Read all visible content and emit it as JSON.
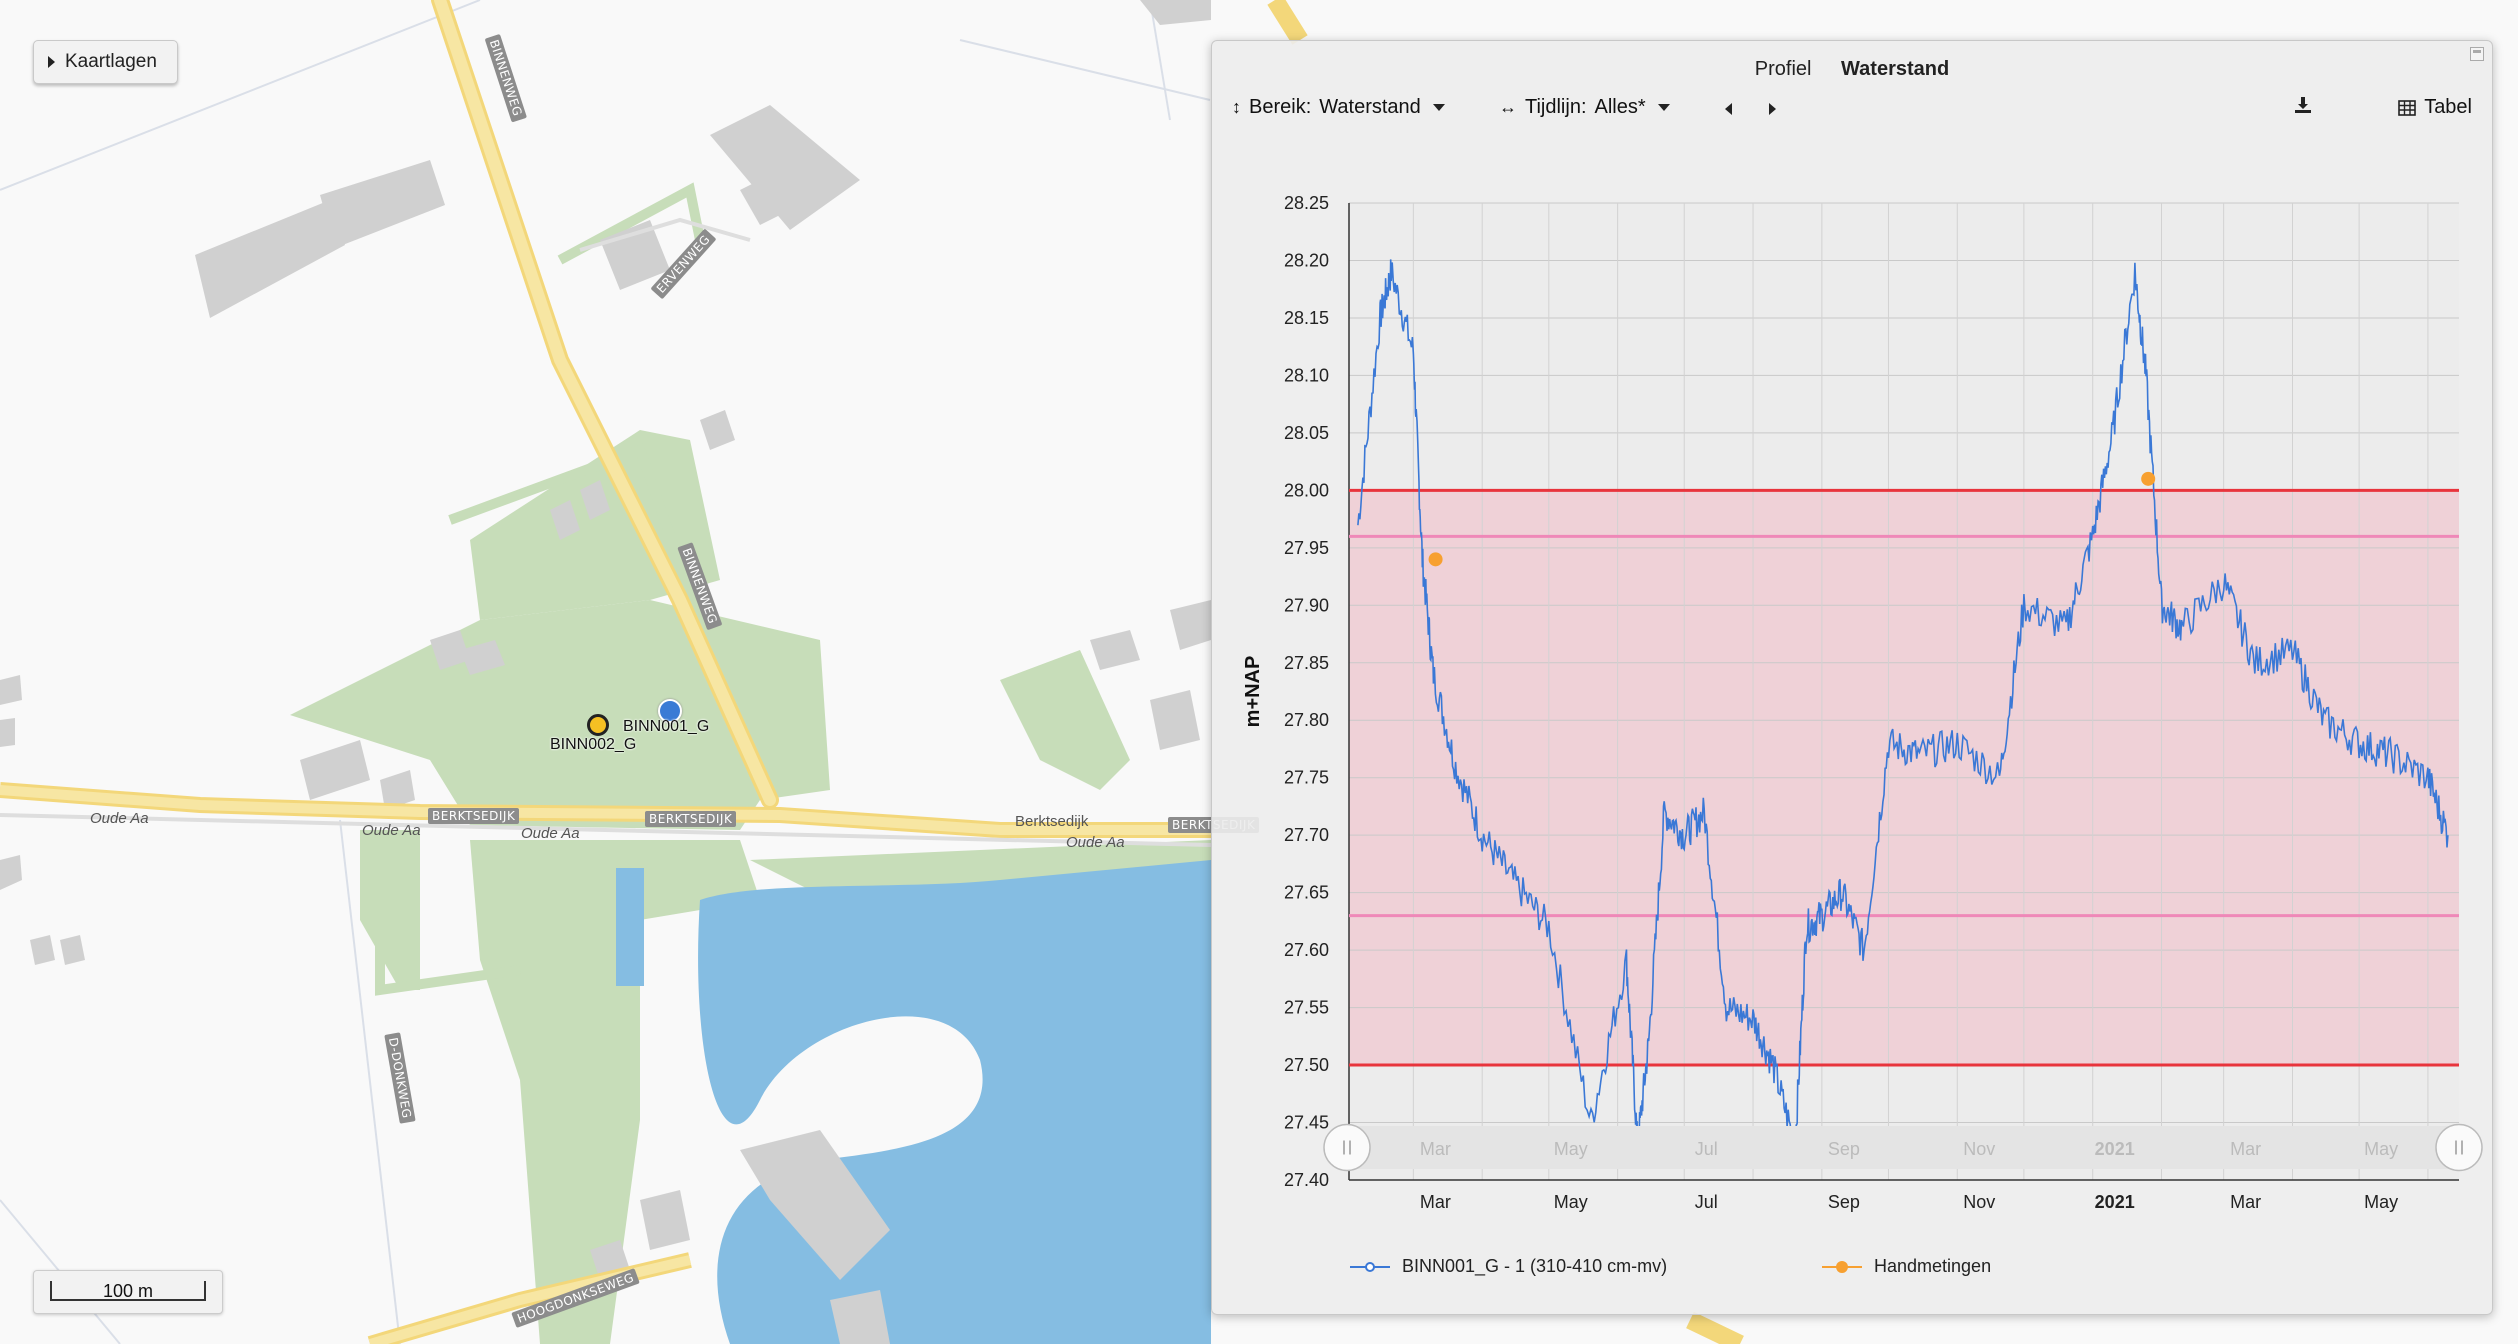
{
  "map": {
    "layers_button_label": "Kaartlagen",
    "scale_label": "100 m",
    "street_labels": [
      "BINNENWEG",
      "ERVENWEG",
      "BINNENWEG",
      "BERKTSEDIJK",
      "BERKTSEDIJK",
      "BERKTSEDIJK",
      "HOOGDONKSEWEG",
      "D-DONKWEG"
    ],
    "road_names": [
      "Oude Aa",
      "Oude Aa",
      "Oude Aa",
      "Oude Aa",
      "Berktsedijk"
    ],
    "markers": [
      {
        "label": "BINN001_G",
        "color": "#3a7bd5"
      },
      {
        "label": "BINN002_G",
        "color": "#f5c023"
      }
    ],
    "colors": {
      "water": "#84bce3",
      "green": "#c6dcb8",
      "building": "#cfcfcf",
      "road": "#f6e08e"
    }
  },
  "panel": {
    "tabs": [
      "Profiel",
      "Waterstand"
    ],
    "active_tab": "Waterstand",
    "bereik_label": "Bereik:",
    "bereik_value": "Waterstand",
    "tijdlijn_label": "Tijdlijn:",
    "tijdlijn_value": "Alles*",
    "table_label": "Tabel",
    "icons": [
      "vertical-arrows-icon",
      "horizontal-arrows-icon",
      "prev-icon",
      "next-icon",
      "download-icon",
      "table-icon"
    ]
  },
  "chart_data": {
    "type": "line",
    "ylabel": "m+NAP",
    "ylim": [
      27.4,
      28.25
    ],
    "yticks": [
      "28.25",
      "28.20",
      "28.15",
      "28.10",
      "28.05",
      "28.00",
      "27.95",
      "27.90",
      "27.85",
      "27.80",
      "27.75",
      "27.70",
      "27.65",
      "27.60",
      "27.55",
      "27.50",
      "27.45",
      "27.40"
    ],
    "x_ticks": [
      "Mar",
      "May",
      "Jul",
      "Sep",
      "Nov",
      "2021",
      "Mar",
      "May"
    ],
    "x_bold": "2021",
    "navigator_ticks": [
      "Mar",
      "May",
      "Jul",
      "Sep",
      "Nov",
      "2021",
      "Mar",
      "May"
    ],
    "reference_lines": [
      {
        "value": 28.0,
        "color": "#e8343c"
      },
      {
        "value": 27.5,
        "color": "#e8343c"
      },
      {
        "value": 27.96,
        "color": "#ef88b8"
      },
      {
        "value": 27.63,
        "color": "#ef88b8"
      }
    ],
    "band": {
      "from": 27.5,
      "to": 28.0,
      "color": "#f0c8d0"
    },
    "series": [
      {
        "name": "BINN001_G - 1 (310-410 cm-mv)",
        "color": "#3a78d6",
        "x": [
          "2020-02-05",
          "2020-02-15",
          "2020-02-20",
          "2020-03-01",
          "2020-03-05",
          "2020-03-10",
          "2020-03-20",
          "2020-04-01",
          "2020-04-15",
          "2020-05-01",
          "2020-05-20",
          "2020-06-05",
          "2020-06-10",
          "2020-06-15",
          "2020-06-22",
          "2020-07-01",
          "2020-07-10",
          "2020-07-20",
          "2020-08-01",
          "2020-08-10",
          "2020-08-20",
          "2020-08-25",
          "2020-09-01",
          "2020-09-10",
          "2020-09-20",
          "2020-10-01",
          "2020-10-15",
          "2020-11-01",
          "2020-11-20",
          "2020-12-01",
          "2020-12-20",
          "2021-01-01",
          "2021-01-10",
          "2021-01-20",
          "2021-01-25",
          "2021-02-01",
          "2021-02-10",
          "2021-03-01",
          "2021-03-15",
          "2021-04-01",
          "2021-04-15",
          "2021-05-01",
          "2021-05-15",
          "2021-06-01",
          "2021-06-10"
        ],
        "y": [
          27.97,
          28.15,
          28.19,
          28.12,
          27.94,
          27.84,
          27.76,
          27.7,
          27.66,
          27.62,
          27.45,
          27.59,
          27.43,
          27.52,
          27.72,
          27.7,
          27.72,
          27.55,
          27.54,
          27.5,
          27.43,
          27.62,
          27.63,
          27.65,
          27.6,
          27.78,
          27.77,
          27.78,
          27.75,
          27.9,
          27.88,
          27.96,
          28.05,
          28.19,
          28.1,
          27.9,
          27.88,
          27.92,
          27.85,
          27.86,
          27.8,
          27.78,
          27.77,
          27.75,
          27.7
        ]
      },
      {
        "name": "Handmetingen",
        "color": "#f7a030",
        "x": [
          "2020-03-11",
          "2021-01-26"
        ],
        "y": [
          27.94,
          28.01
        ]
      }
    ]
  }
}
